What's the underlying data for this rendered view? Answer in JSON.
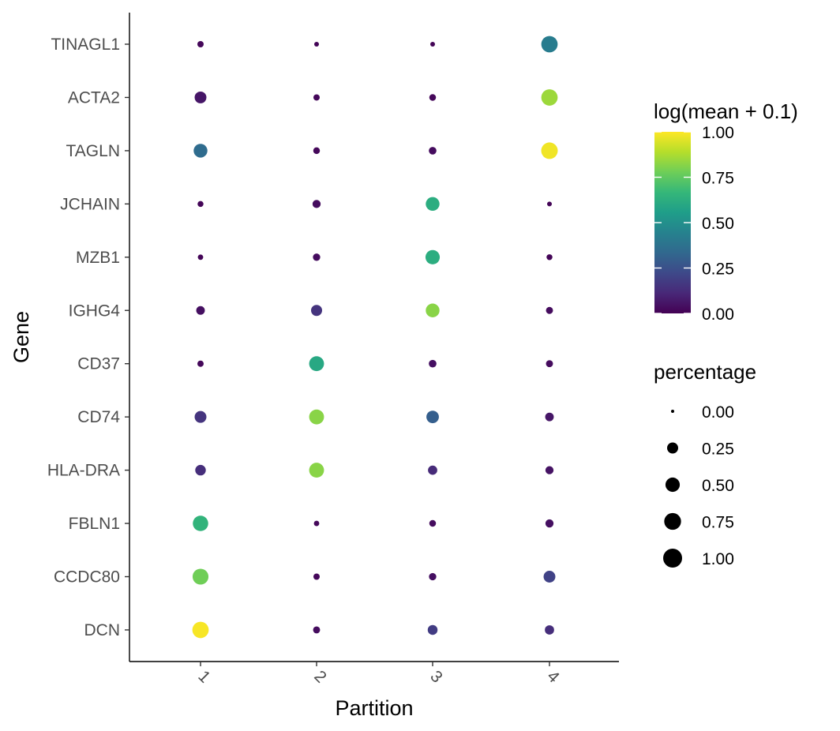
{
  "chart_data": {
    "type": "scatter",
    "subtype": "dot-plot",
    "title": "",
    "xlabel": "Partition",
    "ylabel": "Gene",
    "x_categories": [
      "1",
      "2",
      "3",
      "4"
    ],
    "genes": [
      "TINAGL1",
      "ACTA2",
      "TAGLN",
      "JCHAIN",
      "MZB1",
      "IGHG4",
      "CD37",
      "CD74",
      "HLA-DRA",
      "FBLN1",
      "CCDC80",
      "DCN"
    ],
    "points": [
      {
        "gene": "TINAGL1",
        "partition": "1",
        "log_mean": 0.02,
        "percentage": 0.04
      },
      {
        "gene": "TINAGL1",
        "partition": "2",
        "log_mean": 0.01,
        "percentage": 0.01
      },
      {
        "gene": "TINAGL1",
        "partition": "3",
        "log_mean": 0.01,
        "percentage": 0.01
      },
      {
        "gene": "TINAGL1",
        "partition": "4",
        "log_mean": 0.42,
        "percentage": 0.7
      },
      {
        "gene": "ACTA2",
        "partition": "1",
        "log_mean": 0.06,
        "percentage": 0.3
      },
      {
        "gene": "ACTA2",
        "partition": "2",
        "log_mean": 0.02,
        "percentage": 0.04
      },
      {
        "gene": "ACTA2",
        "partition": "3",
        "log_mean": 0.02,
        "percentage": 0.05
      },
      {
        "gene": "ACTA2",
        "partition": "4",
        "log_mean": 0.85,
        "percentage": 0.7
      },
      {
        "gene": "TAGLN",
        "partition": "1",
        "log_mean": 0.35,
        "percentage": 0.45
      },
      {
        "gene": "TAGLN",
        "partition": "2",
        "log_mean": 0.02,
        "percentage": 0.05
      },
      {
        "gene": "TAGLN",
        "partition": "3",
        "log_mean": 0.03,
        "percentage": 0.08
      },
      {
        "gene": "TAGLN",
        "partition": "4",
        "log_mean": 0.98,
        "percentage": 0.72
      },
      {
        "gene": "JCHAIN",
        "partition": "1",
        "log_mean": 0.01,
        "percentage": 0.03
      },
      {
        "gene": "JCHAIN",
        "partition": "2",
        "log_mean": 0.03,
        "percentage": 0.1
      },
      {
        "gene": "JCHAIN",
        "partition": "3",
        "log_mean": 0.62,
        "percentage": 0.45
      },
      {
        "gene": "JCHAIN",
        "partition": "4",
        "log_mean": 0.01,
        "percentage": 0.01
      },
      {
        "gene": "MZB1",
        "partition": "1",
        "log_mean": 0.01,
        "percentage": 0.02
      },
      {
        "gene": "MZB1",
        "partition": "2",
        "log_mean": 0.03,
        "percentage": 0.07
      },
      {
        "gene": "MZB1",
        "partition": "3",
        "log_mean": 0.62,
        "percentage": 0.5
      },
      {
        "gene": "MZB1",
        "partition": "4",
        "log_mean": 0.01,
        "percentage": 0.03
      },
      {
        "gene": "IGHG4",
        "partition": "1",
        "log_mean": 0.04,
        "percentage": 0.12
      },
      {
        "gene": "IGHG4",
        "partition": "2",
        "log_mean": 0.15,
        "percentage": 0.25
      },
      {
        "gene": "IGHG4",
        "partition": "3",
        "log_mean": 0.82,
        "percentage": 0.45
      },
      {
        "gene": "IGHG4",
        "partition": "4",
        "log_mean": 0.03,
        "percentage": 0.06
      },
      {
        "gene": "CD37",
        "partition": "1",
        "log_mean": 0.02,
        "percentage": 0.04
      },
      {
        "gene": "CD37",
        "partition": "2",
        "log_mean": 0.6,
        "percentage": 0.55
      },
      {
        "gene": "CD37",
        "partition": "3",
        "log_mean": 0.04,
        "percentage": 0.08
      },
      {
        "gene": "CD37",
        "partition": "4",
        "log_mean": 0.03,
        "percentage": 0.06
      },
      {
        "gene": "CD74",
        "partition": "1",
        "log_mean": 0.15,
        "percentage": 0.3
      },
      {
        "gene": "CD74",
        "partition": "2",
        "log_mean": 0.82,
        "percentage": 0.55
      },
      {
        "gene": "CD74",
        "partition": "3",
        "log_mean": 0.3,
        "percentage": 0.35
      },
      {
        "gene": "CD74",
        "partition": "4",
        "log_mean": 0.06,
        "percentage": 0.12
      },
      {
        "gene": "HLA-DRA",
        "partition": "1",
        "log_mean": 0.13,
        "percentage": 0.22
      },
      {
        "gene": "HLA-DRA",
        "partition": "2",
        "log_mean": 0.82,
        "percentage": 0.55
      },
      {
        "gene": "HLA-DRA",
        "partition": "3",
        "log_mean": 0.12,
        "percentage": 0.15
      },
      {
        "gene": "HLA-DRA",
        "partition": "4",
        "log_mean": 0.05,
        "percentage": 0.1
      },
      {
        "gene": "FBLN1",
        "partition": "1",
        "log_mean": 0.65,
        "percentage": 0.6
      },
      {
        "gene": "FBLN1",
        "partition": "2",
        "log_mean": 0.02,
        "percentage": 0.02
      },
      {
        "gene": "FBLN1",
        "partition": "3",
        "log_mean": 0.03,
        "percentage": 0.05
      },
      {
        "gene": "FBLN1",
        "partition": "4",
        "log_mean": 0.04,
        "percentage": 0.1
      },
      {
        "gene": "CCDC80",
        "partition": "1",
        "log_mean": 0.78,
        "percentage": 0.65
      },
      {
        "gene": "CCDC80",
        "partition": "2",
        "log_mean": 0.02,
        "percentage": 0.04
      },
      {
        "gene": "CCDC80",
        "partition": "3",
        "log_mean": 0.04,
        "percentage": 0.07
      },
      {
        "gene": "CCDC80",
        "partition": "4",
        "log_mean": 0.2,
        "percentage": 0.3
      },
      {
        "gene": "DCN",
        "partition": "1",
        "log_mean": 0.99,
        "percentage": 0.7
      },
      {
        "gene": "DCN",
        "partition": "2",
        "log_mean": 0.03,
        "percentage": 0.06
      },
      {
        "gene": "DCN",
        "partition": "3",
        "log_mean": 0.18,
        "percentage": 0.18
      },
      {
        "gene": "DCN",
        "partition": "4",
        "log_mean": 0.13,
        "percentage": 0.15
      }
    ],
    "color_legend": {
      "title": "log(mean + 0.1)",
      "range": [
        0,
        1
      ],
      "breaks": [
        1.0,
        0.75,
        0.5,
        0.25,
        0.0
      ],
      "labels": [
        "1.00",
        "0.75",
        "0.50",
        "0.25",
        "0.00"
      ],
      "palette": [
        "#440154",
        "#482878",
        "#3e4989",
        "#31688e",
        "#26828e",
        "#1f9e89",
        "#35b779",
        "#6ece58",
        "#b5de2b",
        "#fde725"
      ]
    },
    "size_legend": {
      "title": "percentage",
      "breaks": [
        0.0,
        0.25,
        0.5,
        0.75,
        1.0
      ],
      "labels": [
        "0.00",
        "0.25",
        "0.50",
        "0.75",
        "1.00"
      ]
    },
    "x_tick_angle_deg": 45,
    "grid": false
  }
}
